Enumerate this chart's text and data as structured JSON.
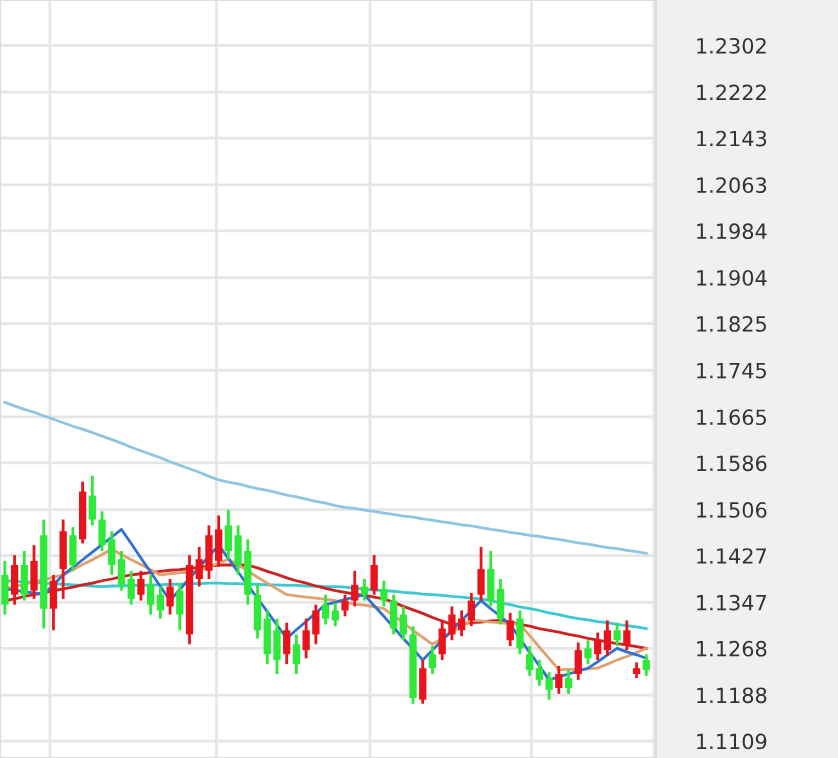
{
  "chart_data": {
    "type": "candlestick",
    "categories": [
      null,
      null,
      null,
      null,
      null,
      null,
      null,
      null,
      null,
      null,
      null,
      null,
      null,
      null,
      null,
      null,
      null,
      null,
      null,
      null,
      null,
      null,
      null,
      null,
      null,
      null,
      null,
      null,
      null,
      null,
      null,
      null,
      null,
      null,
      null,
      null,
      null,
      null,
      null,
      null,
      null,
      null,
      null,
      null,
      null,
      null,
      null,
      null,
      null,
      null,
      null,
      null,
      null,
      null,
      null,
      null,
      null,
      null,
      null,
      null,
      null,
      null,
      null,
      null,
      null,
      null,
      null
    ],
    "ohlc": [
      [
        1.1394,
        1.1418,
        1.1326,
        1.1343
      ],
      [
        1.136,
        1.1428,
        1.1343,
        1.1411
      ],
      [
        1.1411,
        1.1435,
        1.135,
        1.136
      ],
      [
        1.1367,
        1.1445,
        1.1353,
        1.1418
      ],
      [
        1.1462,
        1.1489,
        1.1302,
        1.1336
      ],
      [
        1.1336,
        1.1394,
        1.1299,
        1.1384
      ],
      [
        1.1404,
        1.1489,
        1.1353,
        1.1469
      ],
      [
        1.1462,
        1.1476,
        1.1401,
        1.1411
      ],
      [
        1.1455,
        1.1554,
        1.1448,
        1.1537
      ],
      [
        1.153,
        1.1564,
        1.1479,
        1.1489
      ],
      [
        1.1489,
        1.1503,
        1.1435,
        1.1445
      ],
      [
        1.1455,
        1.1469,
        1.1394,
        1.1411
      ],
      [
        1.1421,
        1.1435,
        1.1367,
        1.1377
      ],
      [
        1.1387,
        1.1401,
        1.1343,
        1.1353
      ],
      [
        1.136,
        1.1401,
        1.135,
        1.1387
      ],
      [
        1.1377,
        1.1394,
        1.1326,
        1.1343
      ],
      [
        1.136,
        1.1374,
        1.1319,
        1.1333
      ],
      [
        1.134,
        1.1387,
        1.1326,
        1.1374
      ],
      [
        1.1367,
        1.138,
        1.1299,
        1.1326
      ],
      [
        1.1292,
        1.1428,
        1.1275,
        1.1411
      ],
      [
        1.1387,
        1.1442,
        1.1374,
        1.1421
      ],
      [
        1.1401,
        1.1479,
        1.1387,
        1.1462
      ],
      [
        1.1418,
        1.1496,
        1.1408,
        1.1472
      ],
      [
        1.1479,
        1.1506,
        1.1421,
        1.1435
      ],
      [
        1.1462,
        1.1479,
        1.1394,
        1.1411
      ],
      [
        1.1435,
        1.1455,
        1.1343,
        1.136
      ],
      [
        1.136,
        1.1377,
        1.1285,
        1.1299
      ],
      [
        1.1319,
        1.1333,
        1.1241,
        1.1258
      ],
      [
        1.1299,
        1.1319,
        1.1224,
        1.1248
      ],
      [
        1.1258,
        1.1312,
        1.1241,
        1.1299
      ],
      [
        1.1275,
        1.1292,
        1.1224,
        1.1241
      ],
      [
        1.1265,
        1.1319,
        1.1251,
        1.1299
      ],
      [
        1.1292,
        1.1343,
        1.1275,
        1.1333
      ],
      [
        1.1343,
        1.136,
        1.1309,
        1.1319
      ],
      [
        1.1333,
        1.1346,
        1.1306,
        1.1316
      ],
      [
        1.1333,
        1.136,
        1.1323,
        1.135
      ],
      [
        1.135,
        1.1401,
        1.134,
        1.1377
      ],
      [
        1.1374,
        1.1387,
        1.135,
        1.136
      ],
      [
        1.1367,
        1.1428,
        1.136,
        1.1411
      ],
      [
        1.137,
        1.1384,
        1.134,
        1.135
      ],
      [
        1.135,
        1.136,
        1.1292,
        1.1302
      ],
      [
        1.1326,
        1.134,
        1.1282,
        1.1292
      ],
      [
        1.1292,
        1.1306,
        1.1173,
        1.1183
      ],
      [
        1.118,
        1.1248,
        1.1173,
        1.1234
      ],
      [
        1.1258,
        1.1272,
        1.1224,
        1.1234
      ],
      [
        1.1258,
        1.1316,
        1.1248,
        1.1302
      ],
      [
        1.1292,
        1.134,
        1.1282,
        1.1326
      ],
      [
        1.1299,
        1.1333,
        1.1289,
        1.1319
      ],
      [
        1.1316,
        1.1363,
        1.1306,
        1.135
      ],
      [
        1.136,
        1.1442,
        1.135,
        1.1404
      ],
      [
        1.1404,
        1.1435,
        1.134,
        1.135
      ],
      [
        1.137,
        1.1387,
        1.1309,
        1.1319
      ],
      [
        1.1282,
        1.1329,
        1.1272,
        1.1316
      ],
      [
        1.1319,
        1.1333,
        1.1258,
        1.1268
      ],
      [
        1.1258,
        1.1272,
        1.1221,
        1.1231
      ],
      [
        1.1234,
        1.1248,
        1.1204,
        1.1214
      ],
      [
        1.1217,
        1.1227,
        1.118,
        1.1197
      ],
      [
        1.12,
        1.1238,
        1.119,
        1.1224
      ],
      [
        1.1217,
        1.1231,
        1.119,
        1.12
      ],
      [
        1.1224,
        1.1278,
        1.1214,
        1.1265
      ],
      [
        1.1268,
        1.1282,
        1.1241,
        1.1251
      ],
      [
        1.1258,
        1.1295,
        1.1248,
        1.1282
      ],
      [
        1.1265,
        1.1316,
        1.1255,
        1.1299
      ],
      [
        1.1299,
        1.1312,
        1.1272,
        1.1282
      ],
      [
        1.1275,
        1.1316,
        1.1265,
        1.1299
      ],
      [
        1.1224,
        1.1244,
        1.1217,
        1.1234
      ],
      [
        1.1248,
        1.1258,
        1.1221,
        1.1231
      ]
    ],
    "colors": [
      "#2ee83a",
      "#e8141c",
      "#2ee83a",
      "#e8141c",
      "#2ee83a",
      "#e8141c",
      "#e8141c",
      "#2ee83a",
      "#e8141c",
      "#2ee83a",
      "#2ee83a",
      "#2ee83a",
      "#2ee83a",
      "#2ee83a",
      "#e8141c",
      "#2ee83a",
      "#2ee83a",
      "#e8141c",
      "#2ee83a",
      "#e8141c",
      "#e8141c",
      "#e8141c",
      "#e8141c",
      "#2ee83a",
      "#2ee83a",
      "#2ee83a",
      "#2ee83a",
      "#2ee83a",
      "#2ee83a",
      "#e8141c",
      "#2ee83a",
      "#e8141c",
      "#e8141c",
      "#2ee83a",
      "#2ee83a",
      "#e8141c",
      "#e8141c",
      "#2ee83a",
      "#e8141c",
      "#2ee83a",
      "#2ee83a",
      "#2ee83a",
      "#2ee83a",
      "#e8141c",
      "#2ee83a",
      "#e8141c",
      "#e8141c",
      "#e8141c",
      "#e8141c",
      "#e8141c",
      "#2ee83a",
      "#2ee83a",
      "#e8141c",
      "#2ee83a",
      "#2ee83a",
      "#2ee83a",
      "#2ee83a",
      "#e8141c",
      "#2ee83a",
      "#e8141c",
      "#2ee83a",
      "#e8141c",
      "#e8141c",
      "#2ee83a",
      "#e8141c",
      "#e8141c",
      "#2ee83a"
    ],
    "series": [
      {
        "type": "line",
        "color": "#8ec5e0",
        "values": [
          1.169,
          1.1684,
          1.1678,
          1.1673,
          1.1667,
          1.1661,
          1.1655,
          1.1649,
          1.1644,
          1.1638,
          1.1632,
          1.1626,
          1.162,
          1.1613,
          1.1607,
          1.1601,
          1.1595,
          1.1588,
          1.1582,
          1.1576,
          1.157,
          1.1563,
          1.1557,
          1.1553,
          1.155,
          1.1546,
          1.1542,
          1.1539,
          1.1535,
          1.1531,
          1.1528,
          1.1524,
          1.152,
          1.1517,
          1.1513,
          1.151,
          1.1508,
          1.1505,
          1.1503,
          1.15,
          1.1498,
          1.1495,
          1.1493,
          1.149,
          1.1488,
          1.1485,
          1.1483,
          1.148,
          1.1478,
          1.1475,
          1.1472,
          1.147,
          1.1467,
          1.1465,
          1.1462,
          1.146,
          1.1457,
          1.1455,
          1.1452,
          1.1449,
          1.1447,
          1.1444,
          1.1441,
          1.1439,
          1.1436,
          1.1434,
          1.1431
        ]
      },
      {
        "type": "line",
        "color": "#3cc8d0",
        "values": [
          1.1384,
          1.1383,
          1.1382,
          1.1381,
          1.138,
          1.1379,
          1.1378,
          1.1377,
          1.1376,
          1.1375,
          1.1374,
          1.1375,
          1.1375,
          1.1376,
          1.1376,
          1.1377,
          1.1377,
          1.1378,
          1.1378,
          1.1379,
          1.1379,
          1.138,
          1.138,
          1.1379,
          1.1379,
          1.1378,
          1.1378,
          1.1377,
          1.1377,
          1.1376,
          1.1376,
          1.1375,
          1.1375,
          1.1374,
          1.1374,
          1.1373,
          1.1371,
          1.137,
          1.1368,
          1.1367,
          1.1366,
          1.1364,
          1.1363,
          1.1361,
          1.136,
          1.1359,
          1.1357,
          1.1356,
          1.1354,
          1.1353,
          1.135,
          1.1346,
          1.1343,
          1.1339,
          1.1336,
          1.1333,
          1.1329,
          1.1326,
          1.1322,
          1.1319,
          1.1317,
          1.1314,
          1.1312,
          1.1309,
          1.1307,
          1.1305,
          1.1302
        ]
      },
      {
        "type": "line",
        "color": "#cc2222",
        "values": [
          1.135,
          1.1353,
          1.1357,
          1.136,
          1.1363,
          1.1367,
          1.137,
          1.1373,
          1.1377,
          1.138,
          1.1384,
          1.1387,
          1.1391,
          1.1394,
          1.1396,
          1.1398,
          1.14,
          1.1402,
          1.1403,
          1.1405,
          1.1407,
          1.1409,
          1.1411,
          1.1411,
          1.1411,
          1.1411,
          1.1406,
          1.14,
          1.1395,
          1.1389,
          1.1384,
          1.138,
          1.1375,
          1.1371,
          1.1367,
          1.1364,
          1.1361,
          1.1359,
          1.1356,
          1.1353,
          1.1347,
          1.134,
          1.1334,
          1.1328,
          1.1321,
          1.1315,
          1.1309,
          1.131,
          1.1312,
          1.1313,
          1.1315,
          1.1316,
          1.1313,
          1.1309,
          1.1306,
          1.1302,
          1.1299,
          1.1296,
          1.1292,
          1.1289,
          1.1285,
          1.1282,
          1.1279,
          1.1276,
          1.1274,
          1.1271,
          1.1268
        ]
      },
      {
        "type": "line",
        "color": "#e0a070",
        "values": [
          1.137,
          1.1374,
          1.1378,
          1.1382,
          1.1386,
          1.139,
          1.1394,
          1.1403,
          1.1412,
          1.142,
          1.1429,
          1.1438,
          1.1429,
          1.142,
          1.1412,
          1.1403,
          1.1394,
          1.1396,
          1.1398,
          1.1399,
          1.1401,
          1.1408,
          1.1414,
          1.1421,
          1.1411,
          1.1401,
          1.139,
          1.138,
          1.137,
          1.136,
          1.1358,
          1.1356,
          1.1354,
          1.1352,
          1.135,
          1.1347,
          1.1344,
          1.1342,
          1.1339,
          1.1336,
          1.1324,
          1.1312,
          1.1299,
          1.1287,
          1.1275,
          1.1285,
          1.1296,
          1.1306,
          1.1316,
          1.1315,
          1.1313,
          1.1312,
          1.131,
          1.1309,
          1.129,
          1.127,
          1.1251,
          1.1231,
          1.1232,
          1.1232,
          1.1233,
          1.1234,
          1.1241,
          1.1248,
          1.1254,
          1.1261,
          1.1268
        ]
      },
      {
        "type": "line",
        "color": "#3070d0",
        "values": [
          1.137,
          1.1368,
          1.1365,
          1.1363,
          1.136,
          1.1377,
          1.1394,
          1.1407,
          1.142,
          1.1433,
          1.1446,
          1.1459,
          1.1472,
          1.1448,
          1.1423,
          1.1399,
          1.1374,
          1.135,
          1.1369,
          1.1388,
          1.1407,
          1.1426,
          1.1445,
          1.1422,
          1.1399,
          1.1376,
          1.1354,
          1.1331,
          1.1308,
          1.1285,
          1.13,
          1.1314,
          1.1329,
          1.1343,
          1.1347,
          1.1352,
          1.1356,
          1.136,
          1.1341,
          1.1323,
          1.1304,
          1.1285,
          1.1267,
          1.1248,
          1.1265,
          1.1282,
          1.1299,
          1.1316,
          1.1333,
          1.135,
          1.1336,
          1.1323,
          1.1309,
          1.1285,
          1.1261,
          1.1238,
          1.1214,
          1.1219,
          1.1224,
          1.1229,
          1.1234,
          1.1245,
          1.1257,
          1.1268,
          1.1262,
          1.1257,
          1.1251
        ]
      }
    ],
    "ylim": [
      1.108,
      1.238
    ],
    "yticks": [
      1.1109,
      1.1188,
      1.1268,
      1.1347,
      1.1427,
      1.1506,
      1.1586,
      1.1665,
      1.1745,
      1.1825,
      1.1904,
      1.1984,
      1.2063,
      1.2143,
      1.2222,
      1.2302
    ],
    "grid": "y",
    "tick_labels": "y"
  }
}
